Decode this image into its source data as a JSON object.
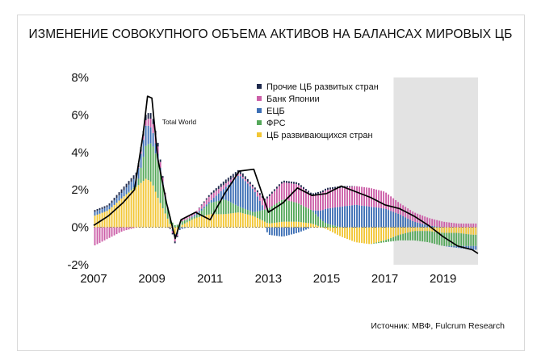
{
  "title": "ИЗМЕНЕНИЕ СОВОКУПНОГО ОБЪЕМА АКТИВОВ НА БАЛАНСАХ МИРОВЫХ ЦБ",
  "source": "Источник: МВФ, Fulcrum Research",
  "chart_data": {
    "type": "bar",
    "stacked": true,
    "title": "ИЗМЕНЕНИЕ СОВОКУПНОГО ОБЪЕМА АКТИВОВ НА БАЛАНСАХ МИРОВЫХ ЦБ",
    "xlabel": "",
    "ylabel": "",
    "ylim": [
      -2,
      8
    ],
    "xlim": [
      2007.0,
      2020.2
    ],
    "y_ticks": [
      "-2%",
      "0%",
      "2%",
      "4%",
      "6%",
      "8%"
    ],
    "y_tick_values": [
      -2,
      0,
      2,
      4,
      6,
      8
    ],
    "x_ticks": [
      "2007",
      "2009",
      "2011",
      "2013",
      "2015",
      "2017",
      "2019"
    ],
    "x_tick_values": [
      2007,
      2009,
      2011,
      2013,
      2015,
      2017,
      2019
    ],
    "forecast_region": [
      2017.3,
      2020.2
    ],
    "annotation": "Total World",
    "legend_position": "top-right",
    "colors": {
      "dm_other": "#1f2a4d",
      "boj": "#cc5fa8",
      "ecb": "#3d6fb5",
      "fed": "#55a85a",
      "em": "#f2c634",
      "total": "#000000",
      "forecast_bg": "#e3e3e3"
    },
    "series_order": [
      "em",
      "fed",
      "ecb",
      "boj",
      "dm_other"
    ],
    "legend": [
      {
        "key": "dm_other",
        "name": "Прочие ЦБ развитых стран"
      },
      {
        "key": "boj",
        "name": "Банк Японии"
      },
      {
        "key": "ecb",
        "name": "ЕЦБ"
      },
      {
        "key": "fed",
        "name": "ФРС"
      },
      {
        "key": "em",
        "name": "ЦБ развивающихся стран"
      }
    ],
    "series": [
      {
        "key": "em",
        "name": "ЦБ развивающихся стран",
        "x": [
          2007.0,
          2007.5,
          2008.0,
          2008.5,
          2008.8,
          2009.0,
          2009.2,
          2009.5,
          2009.8,
          2010.0,
          2010.5,
          2011.0,
          2011.5,
          2012.0,
          2012.5,
          2013.0,
          2013.5,
          2014.0,
          2014.5,
          2015.0,
          2015.5,
          2016.0,
          2016.5,
          2017.0,
          2017.5,
          2018.0,
          2018.5,
          2019.0,
          2019.5,
          2020.0,
          2020.2
        ],
        "values": [
          0.6,
          0.9,
          1.6,
          2.2,
          2.6,
          2.4,
          1.6,
          0.6,
          -0.4,
          0.1,
          0.5,
          0.7,
          0.7,
          0.8,
          0.6,
          0.2,
          0.3,
          0.3,
          0.2,
          -0.1,
          -0.5,
          -0.8,
          -0.9,
          -0.7,
          -0.4,
          -0.2,
          -0.2,
          -0.3,
          -0.3,
          -0.4,
          -0.4
        ]
      },
      {
        "key": "fed",
        "name": "ФРС",
        "x": [
          2007.0,
          2007.5,
          2008.0,
          2008.5,
          2008.8,
          2009.0,
          2009.2,
          2009.5,
          2009.8,
          2010.0,
          2010.5,
          2011.0,
          2011.5,
          2012.0,
          2012.5,
          2013.0,
          2013.5,
          2014.0,
          2014.5,
          2015.0,
          2015.5,
          2016.0,
          2016.5,
          2017.0,
          2017.5,
          2018.0,
          2018.5,
          2019.0,
          2019.5,
          2020.0,
          2020.2
        ],
        "values": [
          0.0,
          0.0,
          0.0,
          0.1,
          1.8,
          2.1,
          2.0,
          0.6,
          0.1,
          0.2,
          0.1,
          0.6,
          0.8,
          0.3,
          0.2,
          0.8,
          1.2,
          1.0,
          0.7,
          0.2,
          0.0,
          0.0,
          0.0,
          -0.1,
          -0.3,
          -0.5,
          -0.6,
          -0.7,
          -0.7,
          -0.6,
          -0.6
        ]
      },
      {
        "key": "ecb",
        "name": "ЕЦБ",
        "x": [
          2007.0,
          2007.5,
          2008.0,
          2008.5,
          2008.8,
          2009.0,
          2009.2,
          2009.5,
          2009.8,
          2010.0,
          2010.5,
          2011.0,
          2011.5,
          2012.0,
          2012.5,
          2013.0,
          2013.5,
          2014.0,
          2014.5,
          2015.0,
          2015.5,
          2016.0,
          2016.5,
          2017.0,
          2017.5,
          2018.0,
          2018.5,
          2019.0,
          2019.5,
          2020.0,
          2020.2
        ],
        "values": [
          0.2,
          0.2,
          0.3,
          0.5,
          1.1,
          0.8,
          0.4,
          0.1,
          -0.2,
          -0.1,
          0.1,
          0.1,
          0.6,
          1.7,
          1.2,
          -0.4,
          -0.5,
          -0.3,
          0.0,
          0.8,
          1.1,
          1.2,
          1.1,
          1.0,
          0.7,
          0.3,
          0.1,
          0.0,
          -0.1,
          -0.2,
          -0.2
        ]
      },
      {
        "key": "boj",
        "name": "Банк Японии",
        "x": [
          2007.0,
          2007.5,
          2008.0,
          2008.5,
          2008.8,
          2009.0,
          2009.2,
          2009.5,
          2009.8,
          2010.0,
          2010.5,
          2011.0,
          2011.5,
          2012.0,
          2012.5,
          2013.0,
          2013.5,
          2014.0,
          2014.5,
          2015.0,
          2015.5,
          2016.0,
          2016.5,
          2017.0,
          2017.5,
          2018.0,
          2018.5,
          2019.0,
          2019.5,
          2020.0,
          2020.2
        ],
        "values": [
          -1.0,
          -0.6,
          -0.2,
          0.0,
          0.3,
          0.5,
          0.4,
          0.1,
          -0.2,
          0.1,
          0.1,
          0.3,
          0.2,
          0.1,
          0.1,
          0.6,
          0.9,
          1.0,
          0.8,
          1.0,
          1.0,
          1.0,
          1.0,
          0.9,
          0.6,
          0.5,
          0.4,
          0.3,
          0.2,
          0.2,
          0.2
        ]
      },
      {
        "key": "dm_other",
        "name": "Прочие ЦБ развитых стран",
        "x": [
          2007.0,
          2007.5,
          2008.0,
          2008.5,
          2008.8,
          2009.0,
          2009.2,
          2009.5,
          2009.8,
          2010.0,
          2010.5,
          2011.0,
          2011.5,
          2012.0,
          2012.5,
          2013.0,
          2013.5,
          2014.0,
          2014.5,
          2015.0,
          2015.5,
          2016.0,
          2016.5,
          2017.0,
          2017.5,
          2018.0,
          2018.5,
          2019.0,
          2019.5,
          2020.0,
          2020.2
        ],
        "values": [
          0.1,
          0.1,
          0.2,
          0.2,
          0.3,
          0.3,
          0.2,
          0.0,
          -0.1,
          0.0,
          0.0,
          0.1,
          0.2,
          0.2,
          0.1,
          0.1,
          0.1,
          0.1,
          0.1,
          0.1,
          0.1,
          0.0,
          0.0,
          0.0,
          0.0,
          0.0,
          0.0,
          0.0,
          0.0,
          0.0,
          0.0
        ]
      },
      {
        "key": "total",
        "name": "Total World",
        "type": "line",
        "x": [
          2007.0,
          2007.5,
          2008.0,
          2008.4,
          2008.7,
          2008.85,
          2009.0,
          2009.2,
          2009.5,
          2009.8,
          2010.0,
          2010.5,
          2011.0,
          2011.5,
          2012.0,
          2012.5,
          2013.0,
          2013.5,
          2014.0,
          2014.5,
          2015.0,
          2015.5,
          2016.0,
          2016.5,
          2017.0,
          2017.5,
          2018.0,
          2018.5,
          2019.0,
          2019.5,
          2020.0,
          2020.2
        ],
        "values": [
          0.1,
          0.6,
          1.3,
          2.0,
          5.0,
          7.0,
          6.9,
          3.7,
          1.3,
          -0.6,
          0.4,
          0.8,
          0.4,
          1.8,
          3.0,
          3.1,
          0.8,
          1.3,
          2.1,
          1.7,
          1.8,
          2.2,
          1.9,
          1.6,
          1.2,
          1.0,
          0.6,
          0.1,
          -0.5,
          -1.0,
          -1.2,
          -1.4
        ]
      }
    ]
  }
}
